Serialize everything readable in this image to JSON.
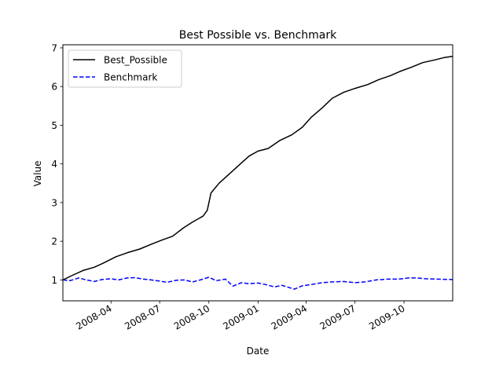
{
  "chart_data": {
    "type": "line",
    "title": "Best Possible vs. Benchmark",
    "xlabel": "Date",
    "ylabel": "Value",
    "xlim": [
      "2008-01-02",
      "2009-12-31"
    ],
    "ylim": [
      0.46,
      7.08
    ],
    "grid": false,
    "legend_position": "top-left",
    "x_ticks": [
      "2008-04",
      "2008-07",
      "2008-10",
      "2009-01",
      "2009-04",
      "2009-07",
      "2009-10"
    ],
    "y_ticks": [
      1,
      2,
      3,
      4,
      5,
      6,
      7
    ],
    "series": [
      {
        "name": "Best_Possible",
        "color": "#000000",
        "style": "solid",
        "points": [
          [
            "2008-01-02",
            1.0
          ],
          [
            "2008-01-20",
            1.12
          ],
          [
            "2008-02-10",
            1.25
          ],
          [
            "2008-03-01",
            1.33
          ],
          [
            "2008-03-20",
            1.45
          ],
          [
            "2008-04-10",
            1.6
          ],
          [
            "2008-05-01",
            1.7
          ],
          [
            "2008-05-25",
            1.8
          ],
          [
            "2008-06-15",
            1.92
          ],
          [
            "2008-07-05",
            2.03
          ],
          [
            "2008-07-25",
            2.13
          ],
          [
            "2008-08-15",
            2.35
          ],
          [
            "2008-09-01",
            2.5
          ],
          [
            "2008-09-20",
            2.65
          ],
          [
            "2008-09-28",
            2.8
          ],
          [
            "2008-10-05",
            3.25
          ],
          [
            "2008-10-20",
            3.5
          ],
          [
            "2008-11-05",
            3.7
          ],
          [
            "2008-11-25",
            3.95
          ],
          [
            "2008-12-15",
            4.2
          ],
          [
            "2009-01-01",
            4.33
          ],
          [
            "2009-01-20",
            4.4
          ],
          [
            "2009-02-10",
            4.6
          ],
          [
            "2009-03-05",
            4.75
          ],
          [
            "2009-03-25",
            4.95
          ],
          [
            "2009-04-10",
            5.2
          ],
          [
            "2009-05-01",
            5.45
          ],
          [
            "2009-05-20",
            5.7
          ],
          [
            "2009-06-10",
            5.85
          ],
          [
            "2009-07-01",
            5.95
          ],
          [
            "2009-07-25",
            6.05
          ],
          [
            "2009-08-15",
            6.18
          ],
          [
            "2009-09-05",
            6.28
          ],
          [
            "2009-09-25",
            6.4
          ],
          [
            "2009-10-15",
            6.5
          ],
          [
            "2009-11-05",
            6.62
          ],
          [
            "2009-11-25",
            6.68
          ],
          [
            "2009-12-15",
            6.75
          ],
          [
            "2009-12-31",
            6.78
          ]
        ]
      },
      {
        "name": "Benchmark",
        "color": "#0000ff",
        "style": "dashed",
        "points": [
          [
            "2008-01-02",
            1.0
          ],
          [
            "2008-01-15",
            0.98
          ],
          [
            "2008-02-01",
            1.05
          ],
          [
            "2008-02-15",
            1.0
          ],
          [
            "2008-03-01",
            0.96
          ],
          [
            "2008-03-15",
            1.01
          ],
          [
            "2008-04-01",
            1.03
          ],
          [
            "2008-04-15",
            1.0
          ],
          [
            "2008-05-01",
            1.05
          ],
          [
            "2008-05-15",
            1.06
          ],
          [
            "2008-06-01",
            1.02
          ],
          [
            "2008-06-15",
            1.0
          ],
          [
            "2008-07-01",
            0.97
          ],
          [
            "2008-07-15",
            0.94
          ],
          [
            "2008-08-01",
            0.99
          ],
          [
            "2008-08-15",
            1.0
          ],
          [
            "2008-09-01",
            0.95
          ],
          [
            "2008-09-15",
            1.0
          ],
          [
            "2008-10-01",
            1.07
          ],
          [
            "2008-10-15",
            0.98
          ],
          [
            "2008-11-01",
            1.02
          ],
          [
            "2008-11-15",
            0.84
          ],
          [
            "2008-12-01",
            0.93
          ],
          [
            "2008-12-15",
            0.9
          ],
          [
            "2009-01-01",
            0.92
          ],
          [
            "2009-01-15",
            0.88
          ],
          [
            "2009-02-01",
            0.82
          ],
          [
            "2009-02-15",
            0.86
          ],
          [
            "2009-03-01",
            0.8
          ],
          [
            "2009-03-10",
            0.76
          ],
          [
            "2009-03-25",
            0.85
          ],
          [
            "2009-04-10",
            0.88
          ],
          [
            "2009-05-01",
            0.93
          ],
          [
            "2009-05-20",
            0.95
          ],
          [
            "2009-06-10",
            0.96
          ],
          [
            "2009-07-01",
            0.93
          ],
          [
            "2009-07-20",
            0.95
          ],
          [
            "2009-08-10",
            1.0
          ],
          [
            "2009-09-01",
            1.02
          ],
          [
            "2009-09-20",
            1.02
          ],
          [
            "2009-10-10",
            1.05
          ],
          [
            "2009-10-25",
            1.05
          ],
          [
            "2009-11-10",
            1.03
          ],
          [
            "2009-12-01",
            1.02
          ],
          [
            "2009-12-31",
            1.01
          ]
        ]
      }
    ]
  }
}
